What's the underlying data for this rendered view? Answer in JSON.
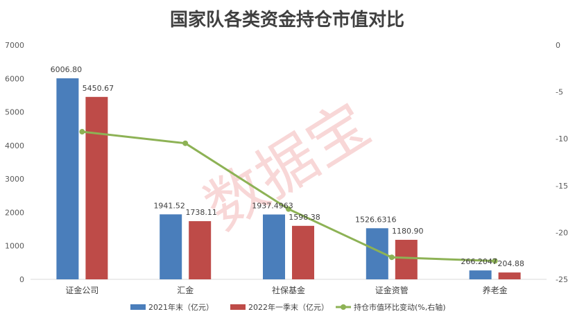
{
  "chart_data": {
    "type": "bar",
    "title": "国家队各类资金持仓市值对比",
    "categories": [
      "证金公司",
      "汇金",
      "社保基金",
      "证金资管",
      "养老金"
    ],
    "series": [
      {
        "name": "2021年末（亿元）",
        "type": "bar",
        "axis": "left",
        "color": "#4a7ebb",
        "values": [
          6006.8,
          1941.52,
          1937.4963,
          1526.6316,
          266.2047
        ],
        "labels": [
          "6006.80",
          "1941.52",
          "1937.4963",
          "1526.6316",
          "266.2047"
        ]
      },
      {
        "name": "2022年一季末（亿元）",
        "type": "bar",
        "axis": "left",
        "color": "#be4b48",
        "values": [
          5450.67,
          1738.11,
          1598.38,
          1180.9,
          204.88
        ],
        "labels": [
          "5450.67",
          "1738.11",
          "1598.38",
          "1180.90",
          "204.88"
        ]
      },
      {
        "name": "持仓市值环比变动(%,右轴)",
        "type": "line",
        "axis": "right",
        "color": "#8db255",
        "values": [
          -9.25,
          -10.48,
          -17.5,
          -22.65,
          -23.04
        ]
      }
    ],
    "left_axis": {
      "min": 0,
      "max": 7000,
      "ticks": [
        0,
        1000,
        2000,
        3000,
        4000,
        5000,
        6000,
        7000
      ]
    },
    "right_axis": {
      "min": -25,
      "max": 0,
      "ticks": [
        0,
        -5,
        -10,
        -15,
        -20,
        -25
      ]
    },
    "grid": false,
    "legend_position": "bottom",
    "watermark": "数据宝"
  }
}
